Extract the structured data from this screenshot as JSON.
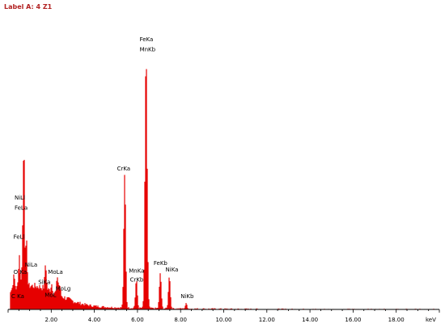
{
  "header": {
    "label": "Label A: 4 Z1"
  },
  "chart_data": {
    "type": "area",
    "xlabel": "keV",
    "ylabel": "",
    "xlim": [
      0,
      20.0
    ],
    "ylim": [
      0,
      100
    ],
    "grid": false,
    "series_color": "#e60000",
    "x_ticks": [
      "2.00",
      "4.00",
      "6.00",
      "8.00",
      "10.00",
      "12.00",
      "14.00",
      "16.00",
      "18.00"
    ],
    "x_tick_values": [
      2,
      4,
      6,
      8,
      10,
      12,
      14,
      16,
      18
    ],
    "peaks": [
      {
        "energy": 0.27,
        "height": 5,
        "width": 0.06
      },
      {
        "energy": 0.52,
        "height": 13,
        "width": 0.05
      },
      {
        "energy": 0.7,
        "height": 25,
        "width": 0.06
      },
      {
        "energy": 0.74,
        "height": 41,
        "width": 0.04
      },
      {
        "energy": 0.85,
        "height": 18,
        "width": 0.05
      },
      {
        "energy": 1.74,
        "height": 10,
        "width": 0.05
      },
      {
        "energy": 2.02,
        "height": 3,
        "width": 0.05
      },
      {
        "energy": 2.29,
        "height": 7,
        "width": 0.05
      },
      {
        "energy": 2.39,
        "height": 4,
        "width": 0.05
      },
      {
        "energy": 5.41,
        "height": 53,
        "width": 0.06
      },
      {
        "energy": 5.95,
        "height": 11,
        "width": 0.06
      },
      {
        "energy": 6.4,
        "height": 100,
        "width": 0.07
      },
      {
        "energy": 7.06,
        "height": 14,
        "width": 0.06
      },
      {
        "energy": 7.48,
        "height": 13,
        "width": 0.06
      },
      {
        "energy": 8.26,
        "height": 2,
        "width": 0.06
      }
    ],
    "annotations": [
      {
        "text": "C Ka",
        "energy": 0.15,
        "height": 4.5
      },
      {
        "text": "O Ka",
        "energy": 0.25,
        "height": 14
      },
      {
        "text": "NiLa",
        "energy": 0.78,
        "height": 17
      },
      {
        "text": "FeLl",
        "energy": 0.25,
        "height": 28
      },
      {
        "text": "FeLa",
        "energy": 0.3,
        "height": 39.5
      },
      {
        "text": "NiLl",
        "energy": 0.3,
        "height": 43.5
      },
      {
        "text": "SiKa",
        "energy": 1.4,
        "height": 10
      },
      {
        "text": "MoL",
        "energy": 1.7,
        "height": 5
      },
      {
        "text": "MoLa",
        "energy": 1.85,
        "height": 14
      },
      {
        "text": "MoLg",
        "energy": 2.2,
        "height": 7.5
      },
      {
        "text": "CrKa",
        "energy": 5.05,
        "height": 55
      },
      {
        "text": "MnKa",
        "energy": 5.6,
        "height": 14.5
      },
      {
        "text": "CrKb",
        "energy": 5.65,
        "height": 11
      },
      {
        "text": "FeKa",
        "energy": 6.1,
        "height": 106
      },
      {
        "text": "MnKb",
        "energy": 6.1,
        "height": 102
      },
      {
        "text": "FeKb",
        "energy": 6.75,
        "height": 17.5
      },
      {
        "text": "NiKa",
        "energy": 7.3,
        "height": 15
      },
      {
        "text": "NiKb",
        "energy": 8.0,
        "height": 4.5
      }
    ]
  }
}
